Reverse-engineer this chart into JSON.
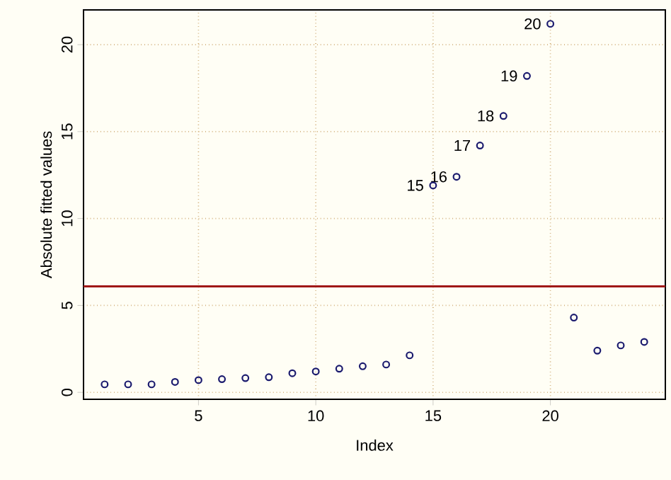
{
  "chart_data": {
    "type": "scatter",
    "xlabel": "Index",
    "ylabel": "Absolute fitted values",
    "x": [
      1,
      2,
      3,
      4,
      5,
      6,
      7,
      8,
      9,
      10,
      11,
      12,
      13,
      14,
      15,
      16,
      17,
      18,
      19,
      20,
      21,
      22,
      23,
      24
    ],
    "values": [
      0.46,
      0.46,
      0.46,
      0.6,
      0.7,
      0.76,
      0.82,
      0.87,
      1.1,
      1.2,
      1.36,
      1.5,
      1.6,
      2.13,
      11.9,
      12.4,
      14.2,
      15.9,
      18.2,
      21.2,
      4.3,
      2.4,
      2.7,
      2.9
    ],
    "color": "#1a1a6e",
    "marker": "circle",
    "xlim": [
      0.1,
      24.9
    ],
    "ylim": [
      -0.4,
      22.0
    ],
    "xticks": [
      5,
      10,
      15,
      20
    ],
    "yticks": [
      0,
      5,
      10,
      15,
      20
    ],
    "grid": true,
    "ref_lines": [
      {
        "axis": "y",
        "value": 6.1,
        "color": "#a01818",
        "line_style": "solid"
      }
    ],
    "annotations": [
      {
        "text": "15",
        "x": 15,
        "y": 11.9
      },
      {
        "text": "16",
        "x": 16,
        "y": 12.4
      },
      {
        "text": "17",
        "x": 17,
        "y": 14.2
      },
      {
        "text": "18",
        "x": 18,
        "y": 15.9
      },
      {
        "text": "19",
        "x": 19,
        "y": 18.2
      },
      {
        "text": "20",
        "x": 20,
        "y": 21.2
      }
    ]
  }
}
